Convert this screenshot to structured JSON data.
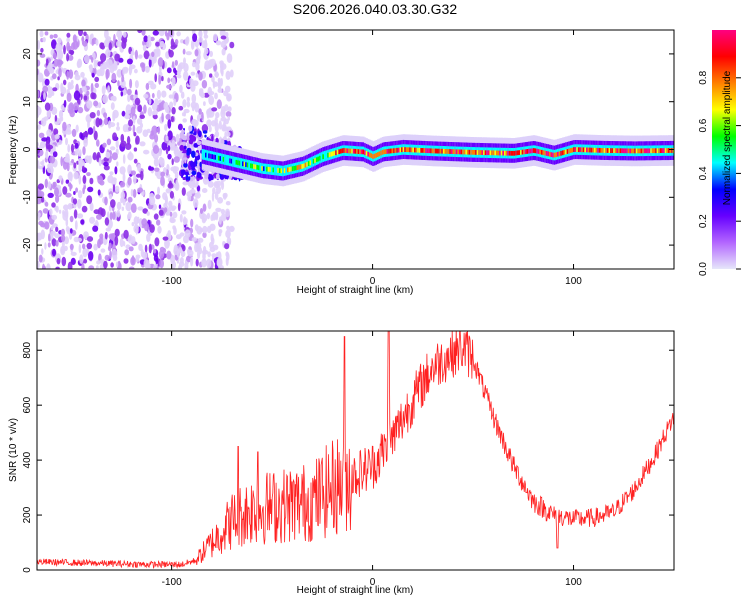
{
  "chart_data": [
    {
      "type": "heatmap",
      "title": "S206.2026.040.03.30.G32",
      "xlabel": "Height of straight line (km)",
      "ylabel": "Frequency (Hz)",
      "xlim": [
        -167,
        150
      ],
      "ylim": [
        -25,
        25
      ],
      "xticks": [
        -100,
        0,
        100
      ],
      "xtick_labels": [
        "-100",
        "0",
        "100"
      ],
      "yticks": [
        -20,
        -10,
        0,
        10,
        20
      ],
      "ytick_labels": [
        "-20",
        "-10",
        "0",
        "10",
        "20"
      ],
      "colorbar": {
        "label": "Normalized spectral amplitude",
        "range": [
          0,
          1
        ],
        "ticks": [
          0,
          0.2,
          0.4,
          0.6,
          0.8
        ],
        "tick_labels": [
          "0.0",
          "0.2",
          "0.4",
          "0.6",
          "0.8"
        ],
        "colors": [
          "#e6e6fa",
          "#b366ff",
          "#6600ff",
          "#0000ff",
          "#00ffff",
          "#00ff00",
          "#ffff00",
          "#ff8000",
          "#ff0000",
          "#ff0080"
        ]
      },
      "ridge": {
        "x": [
          -85,
          -75,
          -65,
          -55,
          -45,
          -35,
          -25,
          -15,
          -5,
          0,
          5,
          15,
          30,
          50,
          70,
          80,
          90,
          100,
          115,
          130,
          150
        ],
        "y": [
          -1,
          -2,
          -3,
          -4,
          -4.5,
          -3.5,
          -1.5,
          -0.2,
          -0.5,
          -1.5,
          -0.5,
          0,
          -0.3,
          -0.6,
          -0.8,
          -0.2,
          -1.2,
          0,
          -0.2,
          -0.3,
          -0.2
        ]
      },
      "noise_region_x": [
        -167,
        -80
      ]
    },
    {
      "type": "line",
      "title": "",
      "xlabel": "Height of straight line (km)",
      "ylabel": "SNR (10 * v/v)",
      "xlim": [
        -167,
        150
      ],
      "ylim": [
        0,
        870
      ],
      "xticks": [
        -100,
        0,
        100
      ],
      "xtick_labels": [
        "-100",
        "0",
        "100"
      ],
      "yticks": [
        0,
        200,
        400,
        600,
        800
      ],
      "ytick_labels": [
        "0",
        "200",
        "400",
        "600",
        "800"
      ],
      "line_color": "#ff2020",
      "series": [
        {
          "name": "SNR",
          "x": [
            -167,
            -140,
            -110,
            -95,
            -88,
            -80,
            -70,
            -60,
            -50,
            -40,
            -30,
            -20,
            -10,
            0,
            10,
            20,
            30,
            40,
            45,
            50,
            60,
            70,
            80,
            90,
            100,
            110,
            120,
            130,
            140,
            150
          ],
          "values": [
            30,
            25,
            20,
            20,
            35,
            100,
            180,
            220,
            230,
            240,
            250,
            300,
            340,
            380,
            480,
            620,
            740,
            790,
            810,
            770,
            560,
            380,
            250,
            200,
            185,
            190,
            210,
            290,
            410,
            560
          ]
        }
      ],
      "spikes": [
        {
          "x": -67,
          "value": 450
        },
        {
          "x": -57,
          "value": 430
        },
        {
          "x": -14,
          "value": 850
        },
        {
          "x": 8,
          "value": 870
        },
        {
          "x": 92,
          "value": 80
        }
      ]
    }
  ]
}
